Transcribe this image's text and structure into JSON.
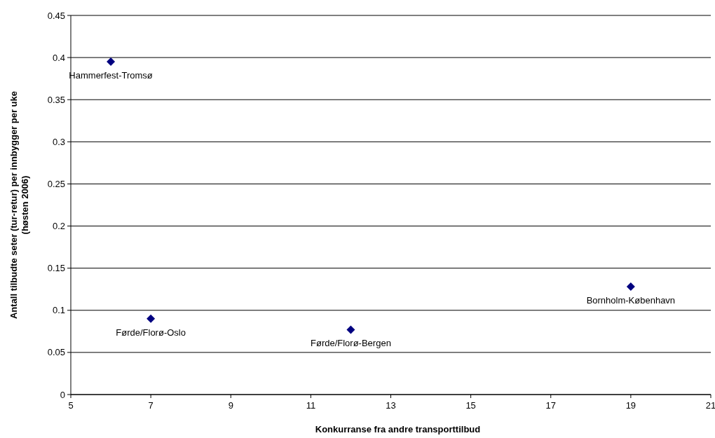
{
  "chart_data": {
    "type": "scatter",
    "xlabel": "Konkurranse fra andre transporttilbud",
    "ylabel": "Antall tilbudte seter (tur-retur) per innbygger per uke (høsten 2006)",
    "x": [
      6,
      7,
      12,
      19
    ],
    "series": [
      {
        "color": "#000080",
        "values": [
          0.395,
          0.09,
          0.077,
          0.128
        ]
      }
    ],
    "xlim": [
      5,
      21
    ],
    "xticks": [
      5,
      7,
      9,
      11,
      13,
      15,
      17,
      19,
      21
    ],
    "ylim": [
      0,
      0.45
    ],
    "yticks": [
      0,
      0.05,
      0.1,
      0.15,
      0.2,
      0.25,
      0.3,
      0.35,
      0.4,
      0.45
    ],
    "grid": "y",
    "marker": "diamond",
    "annotations": [
      {
        "text": "Hammerfest-Tromsø",
        "x": 6,
        "y": 0.395
      },
      {
        "text": "Førde/Florø-Oslo",
        "x": 7,
        "y": 0.09
      },
      {
        "text": "Førde/Florø-Bergen",
        "x": 12,
        "y": 0.077
      },
      {
        "text": "Bornholm-København",
        "x": 19,
        "y": 0.128
      }
    ]
  }
}
